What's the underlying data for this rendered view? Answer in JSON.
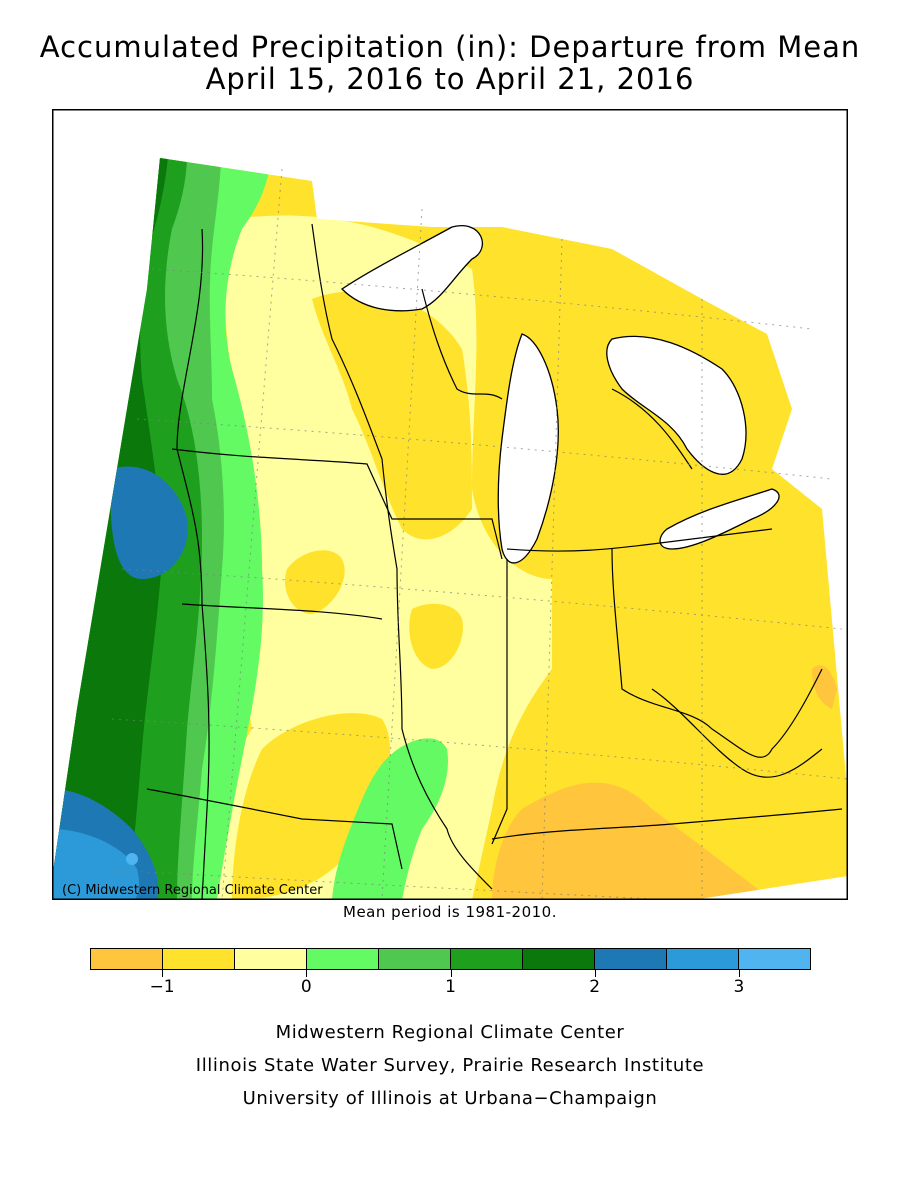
{
  "title": {
    "line1": "Accumulated Precipitation (in): Departure from Mean",
    "line2": "April 15, 2016 to April 21, 2016"
  },
  "map": {
    "copyright": "(C) Midwestern Regional Climate Center",
    "colors": {
      "water": "#ffffff",
      "boundary": "#000000"
    }
  },
  "mean_period": "Mean period is 1981-2010.",
  "legend": {
    "swatches": [
      "#ffc53c",
      "#ffe22c",
      "#ffffa0",
      "#64fa64",
      "#50c850",
      "#1ea01e",
      "#0a780a",
      "#1e78b4",
      "#2c9ad8",
      "#50b4f0"
    ],
    "tick_labels": [
      "−1",
      "0",
      "1",
      "2",
      "3"
    ]
  },
  "credits": [
    "Midwestern Regional Climate Center",
    "Illinois State Water Survey, Prairie Research Institute",
    "University of Illinois at Urbana−Champaign"
  ]
}
